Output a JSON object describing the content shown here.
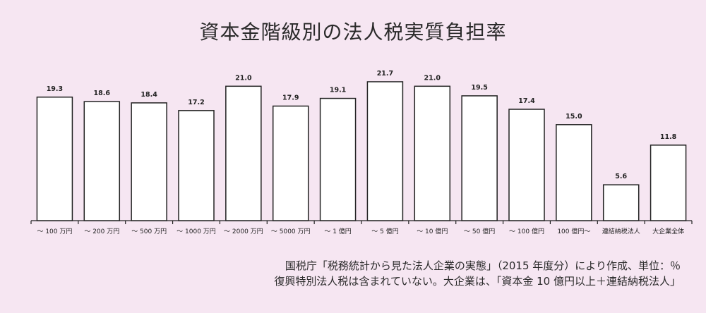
{
  "chart_data": {
    "type": "bar",
    "title": "資本金階級別の法人税実質負担率",
    "categories": [
      "～ 100 万円",
      "～ 200 万円",
      "～ 500 万円",
      "～ 1000 万円",
      "～ 2000 万円",
      "～ 5000 万円",
      "～ 1 億円",
      "～ 5 億円",
      "～ 10 億円",
      "～ 50 億円",
      "～ 100 億円",
      "100 億円～",
      "連結納税法人",
      "大企業全体"
    ],
    "values": [
      19.3,
      18.6,
      18.4,
      17.2,
      21.0,
      17.9,
      19.1,
      21.7,
      21.0,
      19.5,
      17.4,
      15.0,
      5.6,
      11.8
    ],
    "value_labels": [
      "19.3",
      "18.6",
      "18.4",
      "17.2",
      "21.0",
      "17.9",
      "19.1",
      "21.7",
      "21.0",
      "19.5",
      "17.4",
      "15.0",
      "5.6",
      "11.8"
    ],
    "xlabel": "",
    "ylabel": "",
    "ylim": [
      0,
      24
    ],
    "grid": false,
    "bar_fill": "#ffffff",
    "bar_stroke": "#222222",
    "background": "#f6e6f2"
  },
  "notes": {
    "line1": "国税庁「税務統計から見た法人企業の実態」（2015 年度分）により作成、単位：％",
    "line2": "復興特別法人税は含まれていない。大企業は、「資本金 10 億円以上＋連結納税法人」"
  }
}
